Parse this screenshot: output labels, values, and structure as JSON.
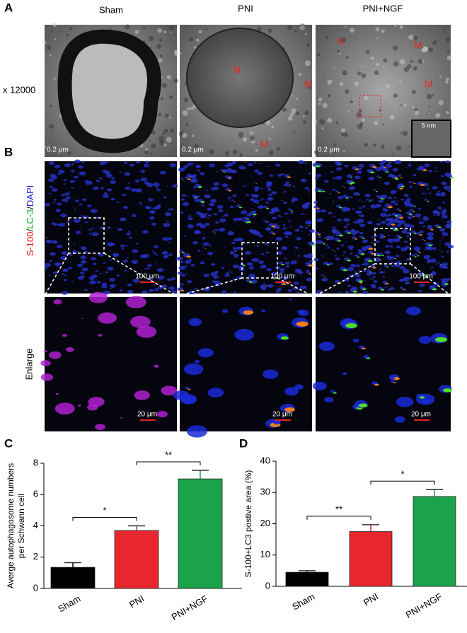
{
  "figure": {
    "panel_labels": [
      "A",
      "B",
      "C",
      "D"
    ],
    "columns": [
      "Sham",
      "PNI",
      "PNI+NGF"
    ],
    "magnification": "x 12000",
    "em_scale_bars": [
      "0.2 μm",
      "0.2 μm",
      "0.2 μm"
    ],
    "inset_scale": "5 nm",
    "em_markers": [
      "N",
      "M",
      "M",
      "N",
      "M",
      "M"
    ],
    "stain": {
      "s100": "S-100",
      "sep1": "/",
      "lc3": "LC-3",
      "sep2": "/",
      "dapi": "DAPI"
    },
    "fluor_scale_bars": [
      "100 μm",
      "100 μm",
      "100 μm"
    ],
    "enlarge": "Enlarge",
    "enlarge_scale_bars": [
      "20 μm",
      "20 μm",
      "20 μm"
    ]
  },
  "chart_data": [
    {
      "type": "bar",
      "ylabel": [
        "Averge autophagosome  numbers",
        "per Schwann cell"
      ],
      "categories": [
        "Sham",
        "PNI",
        "PNI+NGF"
      ],
      "values": [
        1.35,
        3.7,
        7.0
      ],
      "errors": [
        0.3,
        0.3,
        0.55
      ],
      "colors": [
        "#000000",
        "#e8262d",
        "#1aa34a"
      ],
      "ylim": [
        0,
        8
      ],
      "yticks": [
        0,
        2,
        4,
        6,
        8
      ],
      "significance": [
        "*",
        "**"
      ]
    },
    {
      "type": "bar",
      "ylabel": "S-100+LC3 postive area (%)",
      "categories": [
        "Sham",
        "PNI",
        "PNI+NGF"
      ],
      "values": [
        4.5,
        17.5,
        28.7
      ],
      "errors": [
        0.5,
        2.2,
        2.2
      ],
      "colors": [
        "#000000",
        "#e8262d",
        "#1aa34a"
      ],
      "ylim": [
        0,
        40
      ],
      "yticks": [
        0,
        10,
        20,
        30,
        40
      ],
      "significance": [
        "**",
        "*"
      ]
    }
  ]
}
